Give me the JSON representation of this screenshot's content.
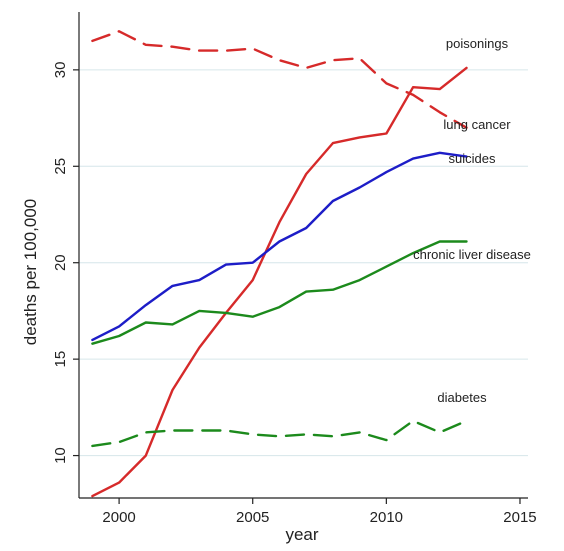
{
  "chart_data": {
    "type": "line",
    "xlabel": "year",
    "ylabel": "deaths per 100,000",
    "xlim": [
      1998.5,
      2015.3
    ],
    "ylim": [
      7.8,
      33
    ],
    "xticks": [
      2000,
      2005,
      2010,
      2015
    ],
    "yticks": [
      10,
      15,
      20,
      25,
      30
    ],
    "grid": true,
    "legend": "inline labels at line ends",
    "series": [
      {
        "name": "poisonings",
        "color": "#d62a2a",
        "dash": "solid",
        "x": [
          1999,
          2000,
          2001,
          2002,
          2003,
          2004,
          2005,
          2006,
          2007,
          2008,
          2009,
          2010,
          2011,
          2012,
          2013
        ],
        "values": [
          7.9,
          8.6,
          10.0,
          13.4,
          15.6,
          17.4,
          19.1,
          22.1,
          24.6,
          26.2,
          26.5,
          26.7,
          29.1,
          29.0,
          30.1
        ]
      },
      {
        "name": "lung cancer",
        "color": "#d62a2a",
        "dash": "dashed",
        "x": [
          1999,
          2000,
          2001,
          2002,
          2003,
          2004,
          2005,
          2006,
          2007,
          2008,
          2009,
          2010,
          2011,
          2012,
          2013
        ],
        "values": [
          31.5,
          32.0,
          31.3,
          31.2,
          31.0,
          31.0,
          31.1,
          30.5,
          30.1,
          30.5,
          30.6,
          29.3,
          28.7,
          27.8,
          27.0
        ]
      },
      {
        "name": "suicides",
        "color": "#1d1dc7",
        "dash": "solid",
        "x": [
          1999,
          2000,
          2001,
          2002,
          2003,
          2004,
          2005,
          2006,
          2007,
          2008,
          2009,
          2010,
          2011,
          2012,
          2013
        ],
        "values": [
          16.0,
          16.7,
          17.8,
          18.8,
          19.1,
          19.9,
          20.0,
          21.1,
          21.8,
          23.2,
          23.9,
          24.7,
          25.4,
          25.7,
          25.5
        ]
      },
      {
        "name": "chronic liver disease",
        "color": "#1c8a1c",
        "dash": "solid",
        "x": [
          1999,
          2000,
          2001,
          2002,
          2003,
          2004,
          2005,
          2006,
          2007,
          2008,
          2009,
          2010,
          2011,
          2012,
          2013
        ],
        "values": [
          15.8,
          16.2,
          16.9,
          16.8,
          17.5,
          17.4,
          17.2,
          17.7,
          18.5,
          18.6,
          19.1,
          19.8,
          20.5,
          21.1,
          21.1
        ]
      },
      {
        "name": "diabetes",
        "color": "#1c8a1c",
        "dash": "dashed",
        "x": [
          1999,
          2000,
          2001,
          2002,
          2003,
          2004,
          2005,
          2006,
          2007,
          2008,
          2009,
          2010,
          2011,
          2012,
          2013
        ],
        "values": [
          10.5,
          10.7,
          11.2,
          11.3,
          11.3,
          11.3,
          11.1,
          11.0,
          11.1,
          11.0,
          11.2,
          10.8,
          11.8,
          11.2,
          11.8
        ]
      }
    ]
  }
}
